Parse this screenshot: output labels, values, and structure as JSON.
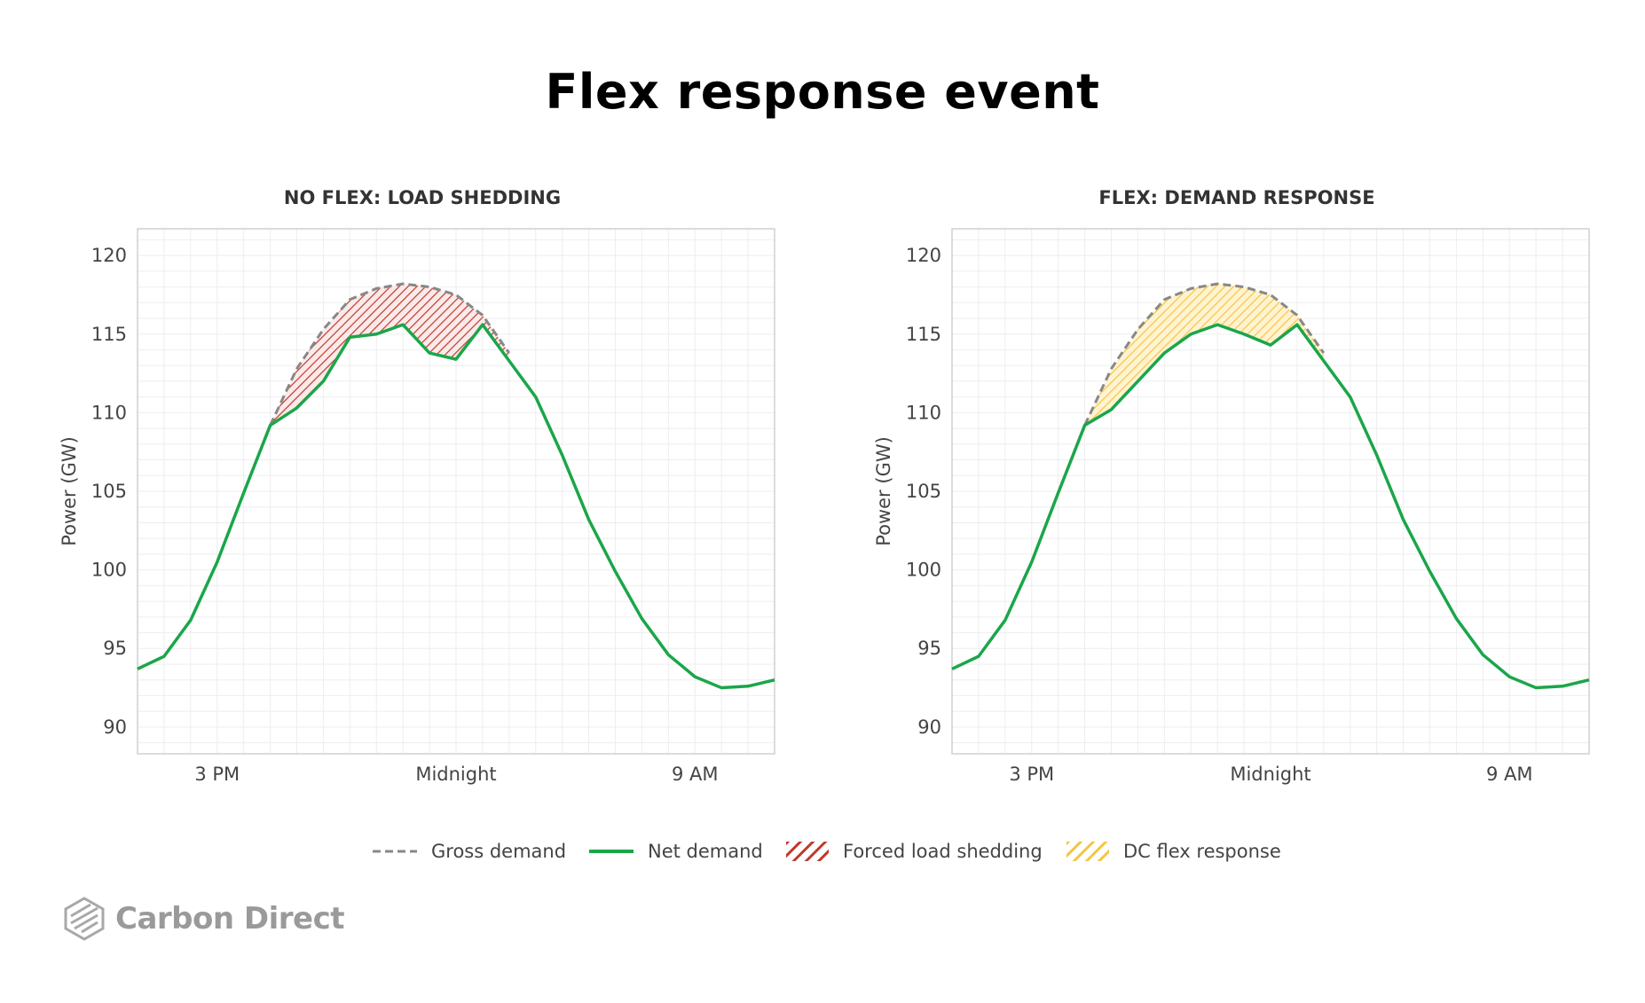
{
  "title": "Flex response event",
  "legend": {
    "gross": "Gross demand",
    "net": "Net demand",
    "shed": "Forced load shedding",
    "flex": "DC flex response"
  },
  "brand": {
    "name": "Carbon Direct"
  },
  "colors": {
    "net": "#1aa64a",
    "gross": "#888888",
    "shed": "#c0392b",
    "flex": "#f5c542",
    "grid": "#eeeeee",
    "axis": "#d0d0d0"
  },
  "chart_data": [
    {
      "type": "line",
      "title": "NO FLEX: LOAD SHEDDING",
      "ylabel": "Power (GW)",
      "ylim": [
        88.3,
        121.7
      ],
      "yticks": [
        90,
        95,
        100,
        105,
        110,
        115,
        120
      ],
      "xticks": [
        {
          "at": 3,
          "label": "3 PM"
        },
        {
          "at": 12,
          "label": "Midnight"
        },
        {
          "at": 21,
          "label": "9 AM"
        }
      ],
      "xlim": [
        0,
        24
      ],
      "grid": true,
      "fill_series": "Forced load shedding",
      "series": [
        {
          "name": "Gross demand",
          "x": [
            5,
            6,
            7,
            8,
            9,
            10,
            11,
            12,
            13,
            14
          ],
          "values": [
            109.2,
            112.8,
            115.3,
            117.2,
            117.9,
            118.2,
            118.0,
            117.5,
            116.2,
            113.8
          ]
        },
        {
          "name": "Net demand",
          "x": [
            0,
            1,
            2,
            3,
            4,
            5,
            6,
            7,
            8,
            9,
            10,
            11,
            12,
            13,
            14,
            15,
            16,
            17,
            18,
            19,
            20,
            21,
            22,
            23,
            24
          ],
          "values": [
            93.7,
            94.5,
            96.8,
            100.5,
            104.9,
            109.2,
            110.3,
            112.0,
            114.8,
            115.0,
            115.6,
            113.8,
            113.4,
            115.6,
            113.3,
            111.0,
            107.3,
            103.2,
            99.9,
            96.9,
            94.6,
            93.2,
            92.5,
            92.6,
            93.0
          ]
        }
      ]
    },
    {
      "type": "line",
      "title": "FLEX: DEMAND RESPONSE",
      "ylabel": "Power (GW)",
      "ylim": [
        88.3,
        121.7
      ],
      "yticks": [
        90,
        95,
        100,
        105,
        110,
        115,
        120
      ],
      "xticks": [
        {
          "at": 3,
          "label": "3 PM"
        },
        {
          "at": 12,
          "label": "Midnight"
        },
        {
          "at": 21,
          "label": "9 AM"
        }
      ],
      "xlim": [
        0,
        24
      ],
      "grid": true,
      "fill_series": "DC flex response",
      "series": [
        {
          "name": "Gross demand",
          "x": [
            5,
            6,
            7,
            8,
            9,
            10,
            11,
            12,
            13,
            14
          ],
          "values": [
            109.2,
            112.8,
            115.3,
            117.2,
            117.9,
            118.2,
            118.0,
            117.5,
            116.2,
            113.8
          ]
        },
        {
          "name": "Net demand",
          "x": [
            0,
            1,
            2,
            3,
            4,
            5,
            6,
            7,
            8,
            9,
            10,
            11,
            12,
            13,
            14,
            15,
            16,
            17,
            18,
            19,
            20,
            21,
            22,
            23,
            24
          ],
          "values": [
            93.7,
            94.5,
            96.8,
            100.5,
            104.9,
            109.2,
            110.2,
            112.0,
            113.8,
            115.0,
            115.6,
            115.0,
            114.3,
            115.6,
            113.3,
            111.0,
            107.3,
            103.2,
            99.9,
            96.9,
            94.6,
            93.2,
            92.5,
            92.6,
            93.0
          ]
        }
      ]
    }
  ]
}
